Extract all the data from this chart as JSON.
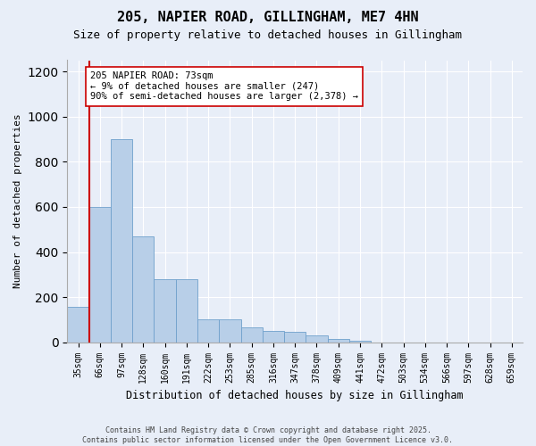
{
  "title1": "205, NAPIER ROAD, GILLINGHAM, ME7 4HN",
  "title2": "Size of property relative to detached houses in Gillingham",
  "xlabel": "Distribution of detached houses by size in Gillingham",
  "ylabel": "Number of detached properties",
  "categories": [
    "35sqm",
    "66sqm",
    "97sqm",
    "128sqm",
    "160sqm",
    "191sqm",
    "222sqm",
    "253sqm",
    "285sqm",
    "316sqm",
    "347sqm",
    "378sqm",
    "409sqm",
    "441sqm",
    "472sqm",
    "503sqm",
    "534sqm",
    "566sqm",
    "597sqm",
    "628sqm",
    "659sqm"
  ],
  "values": [
    155,
    600,
    900,
    470,
    280,
    280,
    100,
    100,
    65,
    50,
    45,
    30,
    15,
    5,
    0,
    0,
    0,
    0,
    0,
    0,
    0
  ],
  "bar_color": "#b8cfe8",
  "bar_edge_color": "#6fa0cc",
  "vline_color": "#cc0000",
  "vline_pos": 1.5,
  "annotation_text": "205 NAPIER ROAD: 73sqm\n← 9% of detached houses are smaller (247)\n90% of semi-detached houses are larger (2,378) →",
  "annotation_box_color": "#ffffff",
  "annotation_box_edge": "#cc0000",
  "ylim": [
    0,
    1250
  ],
  "yticks": [
    0,
    200,
    400,
    600,
    800,
    1000,
    1200
  ],
  "footer": "Contains HM Land Registry data © Crown copyright and database right 2025.\nContains public sector information licensed under the Open Government Licence v3.0.",
  "bg_color": "#e8eef8",
  "grid_color": "#ffffff",
  "title1_fontsize": 11,
  "title2_fontsize": 9,
  "annotation_fontsize": 7.5,
  "ylabel_fontsize": 8,
  "xlabel_fontsize": 8.5,
  "tick_fontsize": 7,
  "footer_fontsize": 6
}
